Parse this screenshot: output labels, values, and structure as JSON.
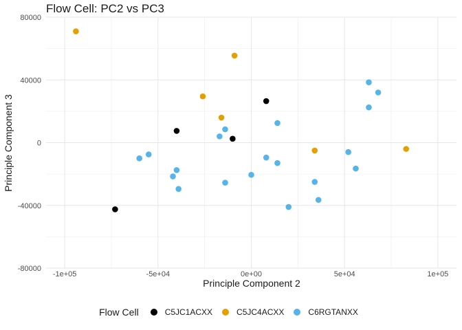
{
  "chart_data": {
    "type": "scatter",
    "title": "Flow Cell: PC2 vs PC3",
    "xlabel": "Principle Component 2",
    "ylabel": "Principle Component 3",
    "xlim": [
      -110000,
      110000
    ],
    "ylim": [
      -80000,
      80000
    ],
    "xticks": [
      -100000,
      -50000,
      0,
      50000,
      100000
    ],
    "xtick_labels": [
      "-1e+05",
      "-5e+04",
      "0e+00",
      "5e+04",
      "1e+05"
    ],
    "yticks": [
      -80000,
      -40000,
      0,
      40000,
      80000
    ],
    "ytick_labels": [
      "-80000",
      "-40000",
      "0",
      "40000",
      "80000"
    ],
    "grid": true,
    "legend_title": "Flow Cell",
    "legend_position": "bottom",
    "series": [
      {
        "name": "C5JC1ACXX",
        "color": "#000000",
        "points": [
          [
            -73000,
            -42500
          ],
          [
            -40000,
            7500
          ],
          [
            -10000,
            2500
          ],
          [
            8000,
            26500
          ]
        ]
      },
      {
        "name": "C5JC4ACXX",
        "color": "#E69F00",
        "points": [
          [
            -94000,
            71000
          ],
          [
            -9000,
            55500
          ],
          [
            -26000,
            29500
          ],
          [
            -16000,
            16000
          ],
          [
            34000,
            -5000
          ],
          [
            83000,
            -4000
          ]
        ]
      },
      {
        "name": "C6RGTANXX",
        "color": "#56B4E9",
        "points": [
          [
            63000,
            38500
          ],
          [
            68000,
            32000
          ],
          [
            63000,
            22500
          ],
          [
            14000,
            12500
          ],
          [
            -14000,
            8500
          ],
          [
            -17000,
            4000
          ],
          [
            -55000,
            -7500
          ],
          [
            -60000,
            -10000
          ],
          [
            -40000,
            -17500
          ],
          [
            -42000,
            -21500
          ],
          [
            -39000,
            -29500
          ],
          [
            -14000,
            -25500
          ],
          [
            0,
            -20500
          ],
          [
            8000,
            -9500
          ],
          [
            14000,
            -13000
          ],
          [
            34000,
            -25000
          ],
          [
            36000,
            -36500
          ],
          [
            20000,
            -41000
          ],
          [
            52000,
            -6000
          ],
          [
            56000,
            -16500
          ]
        ]
      }
    ]
  }
}
